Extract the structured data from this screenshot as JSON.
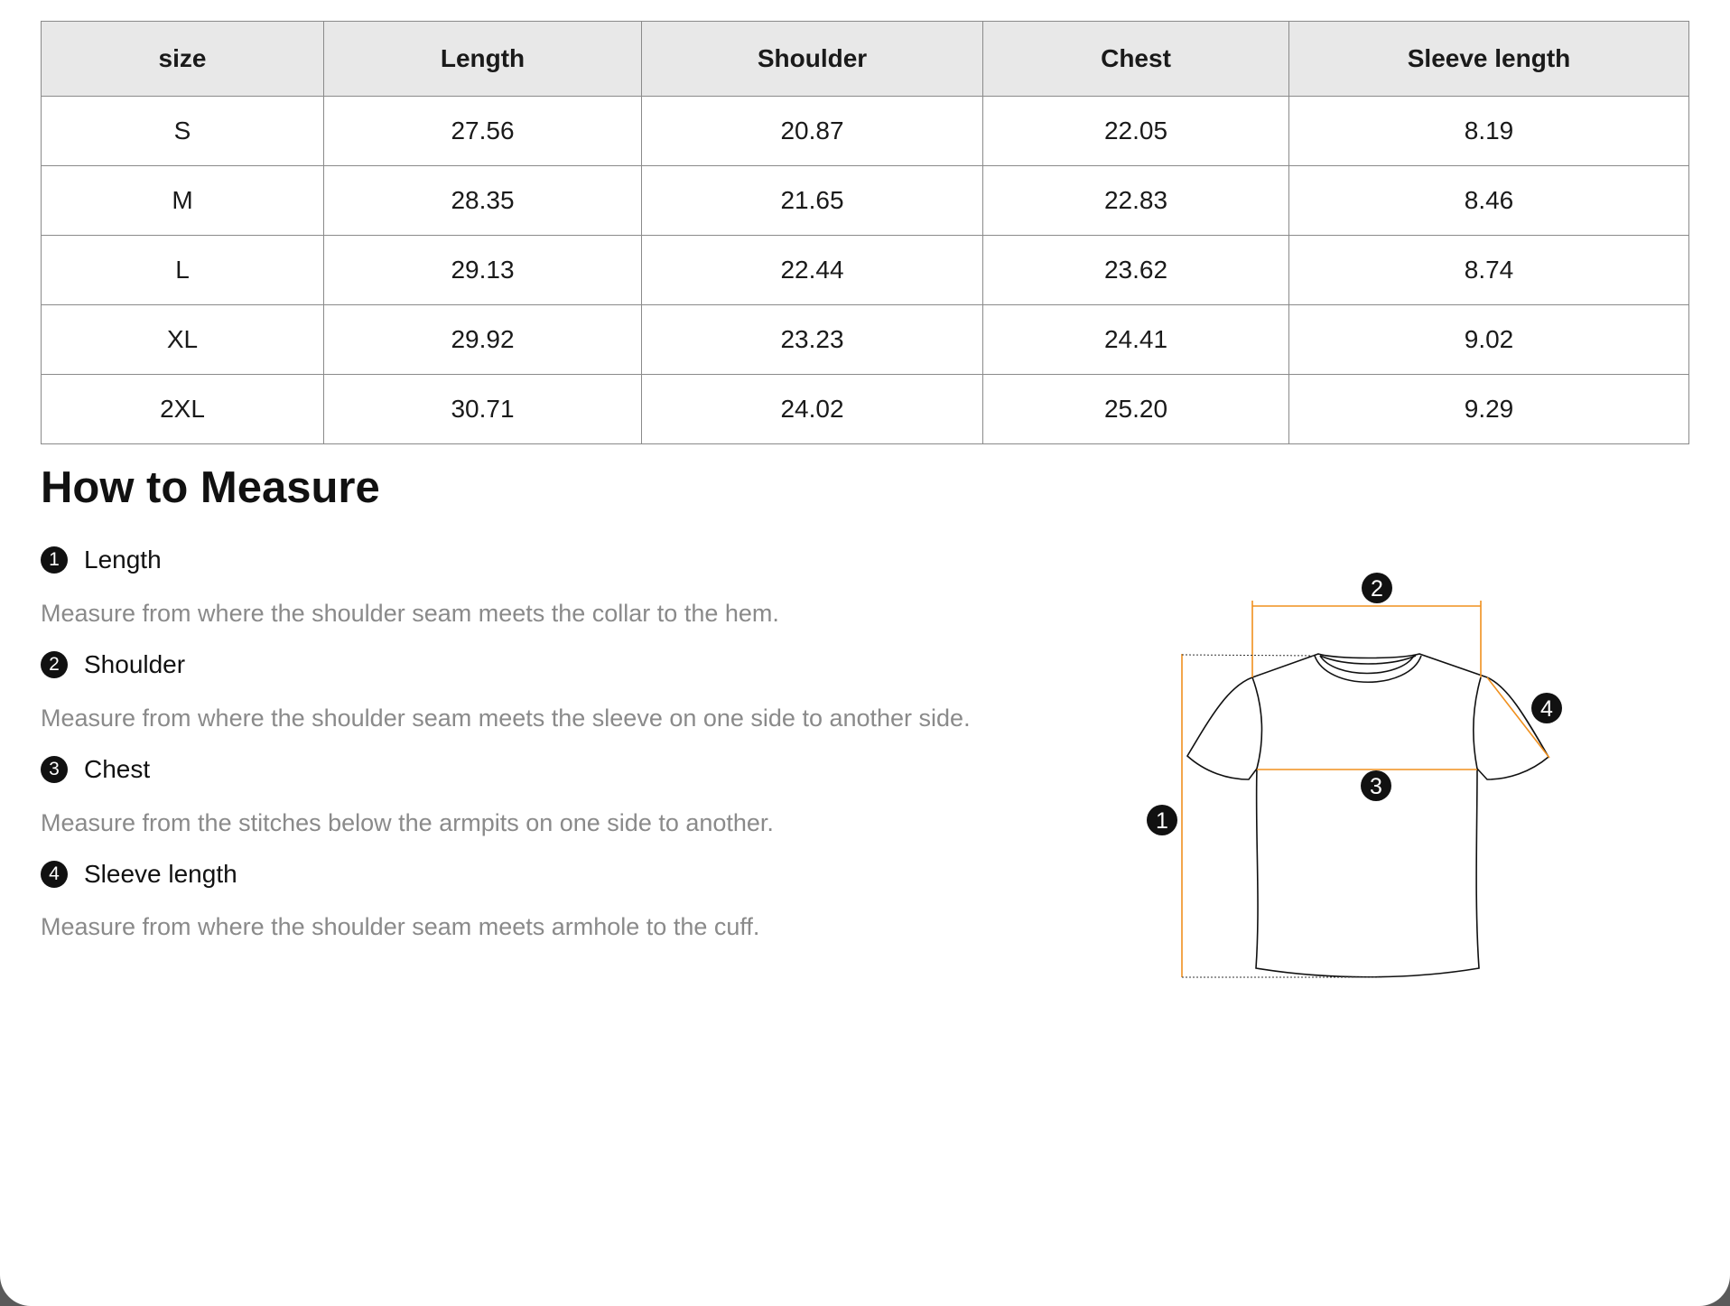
{
  "table": {
    "headers": [
      "size",
      "Length",
      "Shoulder",
      "Chest",
      "Sleeve length"
    ],
    "rows": [
      [
        "S",
        "27.56",
        "20.87",
        "22.05",
        "8.19"
      ],
      [
        "M",
        "28.35",
        "21.65",
        "22.83",
        "8.46"
      ],
      [
        "L",
        "29.13",
        "22.44",
        "23.62",
        "8.74"
      ],
      [
        "XL",
        "29.92",
        "23.23",
        "24.41",
        "9.02"
      ],
      [
        "2XL",
        "30.71",
        "24.02",
        "25.20",
        "9.29"
      ]
    ]
  },
  "how_to_measure": {
    "title": "How to Measure",
    "items": [
      {
        "num": "1",
        "title": "Length",
        "desc": "Measure from where the shoulder seam meets the collar to the hem."
      },
      {
        "num": "2",
        "title": "Shoulder",
        "desc": "Measure from where the shoulder seam meets the sleeve on one side to another side."
      },
      {
        "num": "3",
        "title": "Chest",
        "desc": "Measure from the stitches below the armpits on one side to another."
      },
      {
        "num": "4",
        "title": "Sleeve length",
        "desc": "Measure from where the shoulder seam meets armhole to the cuff."
      }
    ]
  },
  "diagram": {
    "labels": [
      "1",
      "2",
      "3",
      "4"
    ],
    "accent": "#f0901e"
  }
}
